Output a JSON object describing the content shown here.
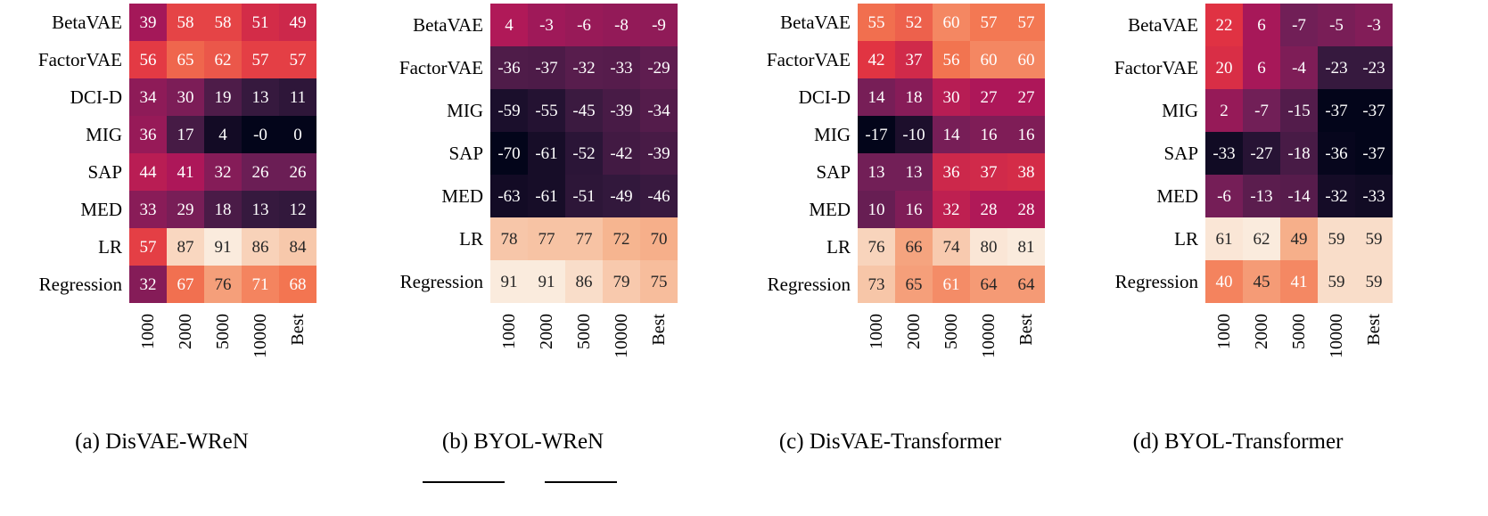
{
  "figure": {
    "background": "#ffffff",
    "annotation_text_dark": "#262626",
    "annotation_text_light": "#ffffff"
  },
  "colormap_stops": [
    [
      0.0,
      "#03051A"
    ],
    [
      0.14,
      "#35193E"
    ],
    [
      0.3,
      "#701F57"
    ],
    [
      0.45,
      "#AD1759"
    ],
    [
      0.6,
      "#E13342"
    ],
    [
      0.75,
      "#F37651"
    ],
    [
      0.88,
      "#F6B48F"
    ],
    [
      1.0,
      "#FAEBDD"
    ]
  ],
  "chart_data": [
    {
      "type": "heatmap",
      "caption": "(a) DisVAE-WReN",
      "columns": [
        "1000",
        "2000",
        "5000",
        "10000",
        "Best"
      ],
      "rows": [
        "BetaVAE",
        "FactorVAE",
        "DCI-D",
        "MIG",
        "SAP",
        "MED",
        "LR",
        "Regression"
      ],
      "values": [
        [
          39,
          58,
          58,
          51,
          49
        ],
        [
          56,
          65,
          62,
          57,
          57
        ],
        [
          34,
          30,
          19,
          13,
          11
        ],
        [
          36,
          17,
          4,
          "-0",
          0
        ],
        [
          44,
          41,
          32,
          26,
          26
        ],
        [
          33,
          29,
          18,
          13,
          12
        ],
        [
          57,
          87,
          91,
          86,
          84
        ],
        [
          32,
          67,
          76,
          71,
          68
        ]
      ]
    },
    {
      "type": "heatmap",
      "caption": "(b) BYOL-WReN",
      "columns": [
        "1000",
        "2000",
        "5000",
        "10000",
        "Best"
      ],
      "rows": [
        "BetaVAE",
        "FactorVAE",
        "MIG",
        "SAP",
        "MED",
        "LR",
        "Regression"
      ],
      "values": [
        [
          4,
          -3,
          -6,
          -8,
          -9
        ],
        [
          -36,
          -37,
          -32,
          -33,
          -29
        ],
        [
          -59,
          -55,
          -45,
          -39,
          -34
        ],
        [
          -70,
          -61,
          -52,
          -42,
          -39
        ],
        [
          -63,
          -61,
          -51,
          -49,
          -46
        ],
        [
          78,
          77,
          77,
          72,
          70
        ],
        [
          91,
          91,
          86,
          79,
          75
        ]
      ]
    },
    {
      "type": "heatmap",
      "caption": "(c) DisVAE-Transformer",
      "columns": [
        "1000",
        "2000",
        "5000",
        "10000",
        "Best"
      ],
      "rows": [
        "BetaVAE",
        "FactorVAE",
        "DCI-D",
        "MIG",
        "SAP",
        "MED",
        "LR",
        "Regression"
      ],
      "values": [
        [
          55,
          52,
          60,
          57,
          57
        ],
        [
          42,
          37,
          56,
          60,
          60
        ],
        [
          14,
          18,
          30,
          27,
          27
        ],
        [
          -17,
          -10,
          14,
          16,
          16
        ],
        [
          13,
          13,
          36,
          37,
          38
        ],
        [
          10,
          16,
          32,
          28,
          28
        ],
        [
          76,
          66,
          74,
          80,
          81
        ],
        [
          73,
          65,
          61,
          64,
          64
        ]
      ]
    },
    {
      "type": "heatmap",
      "caption": "(d) BYOL-Transformer",
      "columns": [
        "1000",
        "2000",
        "5000",
        "10000",
        "Best"
      ],
      "rows": [
        "BetaVAE",
        "FactorVAE",
        "MIG",
        "SAP",
        "MED",
        "LR",
        "Regression"
      ],
      "values": [
        [
          22,
          6,
          -7,
          -5,
          -3
        ],
        [
          20,
          6,
          -4,
          -23,
          -23
        ],
        [
          2,
          -7,
          -15,
          -37,
          -37
        ],
        [
          -33,
          -27,
          -18,
          -36,
          -37
        ],
        [
          -6,
          -13,
          -14,
          -32,
          -33
        ],
        [
          61,
          62,
          49,
          59,
          59
        ],
        [
          40,
          45,
          41,
          59,
          59
        ]
      ]
    }
  ]
}
